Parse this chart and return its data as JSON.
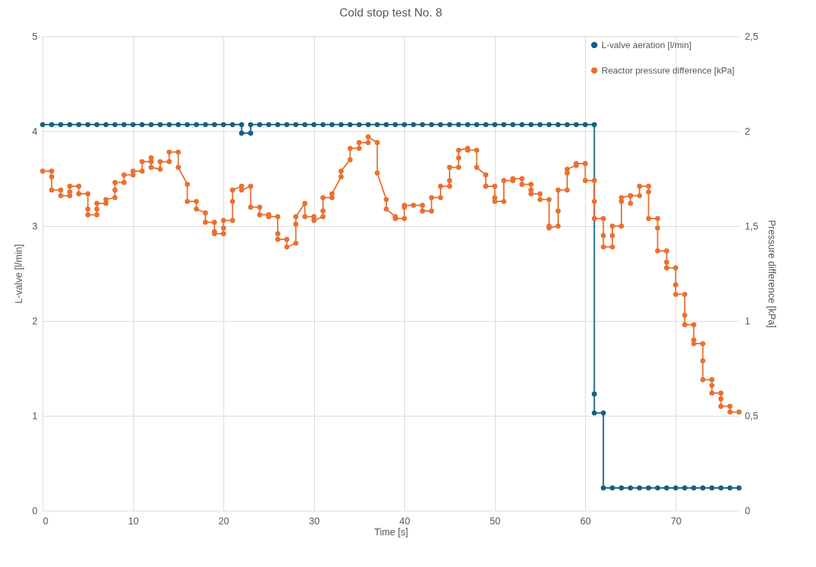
{
  "chart_data": {
    "type": "line",
    "title": "Cold stop test No. 8",
    "xlabel": "Time [s]",
    "ylabel": "L-valve [l/min]",
    "y2label": "Pressure difference [kPa]",
    "xlim": [
      0,
      77
    ],
    "xticks": [
      0,
      10,
      20,
      30,
      40,
      50,
      60,
      70
    ],
    "ylim": [
      0,
      5
    ],
    "yticks": [
      0,
      1,
      2,
      3,
      4,
      5
    ],
    "y2lim": [
      0,
      2.5
    ],
    "y2ticks": [
      0,
      {
        "value": 0.5,
        "label": "0,5"
      },
      1,
      {
        "value": 1.5,
        "label": "1,5"
      },
      2,
      {
        "value": 2.5,
        "label": "2,5"
      }
    ],
    "grid": true,
    "legend": "top right",
    "marker": "circle",
    "line_style": "solid",
    "series": [
      {
        "name": "L-valve aeration [l/min]",
        "color": "#156082",
        "x": [
          0,
          1,
          2,
          3,
          4,
          5,
          6,
          7,
          8,
          9,
          10,
          11,
          12,
          13,
          14,
          15,
          16,
          17,
          18,
          19,
          20,
          21,
          22,
          22,
          23,
          23,
          24,
          25,
          26,
          27,
          28,
          29,
          30,
          31,
          32,
          33,
          34,
          35,
          36,
          37,
          38,
          39,
          40,
          41,
          42,
          43,
          44,
          45,
          46,
          47,
          48,
          49,
          50,
          51,
          52,
          53,
          54,
          55,
          56,
          57,
          58,
          59,
          60,
          61,
          61,
          61,
          62,
          62,
          63,
          64,
          65,
          66,
          67,
          68,
          69,
          70,
          71,
          72,
          73,
          74,
          75,
          76,
          77
        ],
        "values": [
          4.07,
          4.07,
          4.07,
          4.07,
          4.07,
          4.07,
          4.07,
          4.07,
          4.07,
          4.07,
          4.07,
          4.07,
          4.07,
          4.07,
          4.07,
          4.07,
          4.07,
          4.07,
          4.07,
          4.07,
          4.07,
          4.07,
          4.07,
          3.98,
          3.98,
          4.07,
          4.07,
          4.07,
          4.07,
          4.07,
          4.07,
          4.07,
          4.07,
          4.07,
          4.07,
          4.07,
          4.07,
          4.07,
          4.07,
          4.07,
          4.07,
          4.07,
          4.07,
          4.07,
          4.07,
          4.07,
          4.07,
          4.07,
          4.07,
          4.07,
          4.07,
          4.07,
          4.07,
          4.07,
          4.07,
          4.07,
          4.07,
          4.07,
          4.07,
          4.07,
          4.07,
          4.07,
          4.07,
          4.07,
          1.23,
          1.03,
          1.03,
          0.24,
          0.24,
          0.24,
          0.24,
          0.24,
          0.24,
          0.24,
          0.24,
          0.24,
          0.24,
          0.24,
          0.24,
          0.24,
          0.24,
          0.24,
          0.24
        ]
      },
      {
        "name": "Reactor pressure difference [kPa]",
        "color": "#e97132",
        "axis": "y2",
        "x": [
          0,
          1,
          1,
          1,
          2,
          2,
          3,
          3,
          3,
          4,
          4,
          5,
          5,
          5,
          6,
          6,
          6,
          7,
          7,
          8,
          8,
          8,
          9,
          9,
          10,
          10,
          11,
          11,
          12,
          12,
          12,
          13,
          13,
          14,
          14,
          15,
          15,
          16,
          16,
          17,
          17,
          18,
          18,
          19,
          19,
          19,
          20,
          20,
          20,
          21,
          21,
          21,
          22,
          22,
          23,
          23,
          24,
          24,
          25,
          25,
          26,
          26,
          26,
          27,
          27,
          28,
          28,
          28,
          29,
          29,
          30,
          30,
          31,
          31,
          31,
          32,
          32,
          33,
          33,
          34,
          34,
          35,
          35,
          36,
          36,
          37,
          37,
          38,
          38,
          39,
          39,
          40,
          40,
          40,
          41,
          42,
          42,
          43,
          43,
          44,
          44,
          45,
          45,
          45,
          46,
          46,
          46,
          47,
          47,
          48,
          48,
          49,
          49,
          50,
          50,
          50,
          51,
          51,
          52,
          52,
          53,
          53,
          54,
          54,
          54,
          55,
          55,
          56,
          56,
          56,
          57,
          57,
          57,
          58,
          58,
          58,
          59,
          59,
          60,
          60,
          61,
          61,
          61,
          62,
          62,
          62,
          63,
          63,
          63,
          64,
          64,
          64,
          65,
          65,
          65,
          66,
          66,
          67,
          67,
          67,
          68,
          68,
          68,
          69,
          69,
          69,
          70,
          70,
          70,
          71,
          71,
          71,
          72,
          72,
          72,
          73,
          73,
          73,
          74,
          74,
          74,
          75,
          75,
          75,
          76,
          76,
          77
        ],
        "values": [
          1.79,
          1.79,
          1.76,
          1.69,
          1.69,
          1.66,
          1.66,
          1.68,
          1.71,
          1.71,
          1.67,
          1.67,
          1.59,
          1.56,
          1.56,
          1.59,
          1.62,
          1.62,
          1.64,
          1.65,
          1.69,
          1.73,
          1.73,
          1.77,
          1.77,
          1.79,
          1.79,
          1.84,
          1.84,
          1.86,
          1.81,
          1.8,
          1.84,
          1.84,
          1.89,
          1.89,
          1.81,
          1.72,
          1.63,
          1.63,
          1.59,
          1.57,
          1.52,
          1.52,
          1.47,
          1.46,
          1.46,
          1.49,
          1.53,
          1.53,
          1.63,
          1.69,
          1.71,
          1.69,
          1.71,
          1.6,
          1.6,
          1.56,
          1.56,
          1.55,
          1.55,
          1.46,
          1.43,
          1.43,
          1.39,
          1.41,
          1.51,
          1.55,
          1.62,
          1.55,
          1.55,
          1.53,
          1.55,
          1.58,
          1.65,
          1.65,
          1.67,
          1.76,
          1.79,
          1.85,
          1.91,
          1.91,
          1.94,
          1.94,
          1.97,
          1.94,
          1.78,
          1.64,
          1.59,
          1.55,
          1.54,
          1.54,
          1.6,
          1.61,
          1.61,
          1.61,
          1.58,
          1.58,
          1.65,
          1.65,
          1.71,
          1.71,
          1.74,
          1.81,
          1.81,
          1.86,
          1.9,
          1.91,
          1.9,
          1.9,
          1.81,
          1.77,
          1.71,
          1.71,
          1.65,
          1.63,
          1.63,
          1.74,
          1.74,
          1.75,
          1.75,
          1.72,
          1.72,
          1.69,
          1.67,
          1.67,
          1.64,
          1.64,
          1.5,
          1.49,
          1.5,
          1.58,
          1.69,
          1.69,
          1.78,
          1.8,
          1.82,
          1.83,
          1.83,
          1.74,
          1.74,
          1.63,
          1.54,
          1.54,
          1.45,
          1.39,
          1.39,
          1.45,
          1.5,
          1.5,
          1.63,
          1.65,
          1.66,
          1.62,
          1.66,
          1.66,
          1.71,
          1.71,
          1.68,
          1.54,
          1.54,
          1.49,
          1.37,
          1.37,
          1.31,
          1.28,
          1.28,
          1.19,
          1.14,
          1.14,
          1.03,
          0.98,
          0.98,
          0.9,
          0.88,
          0.88,
          0.79,
          0.69,
          0.69,
          0.66,
          0.62,
          0.62,
          0.59,
          0.55,
          0.55,
          0.52,
          0.52
        ]
      }
    ]
  }
}
